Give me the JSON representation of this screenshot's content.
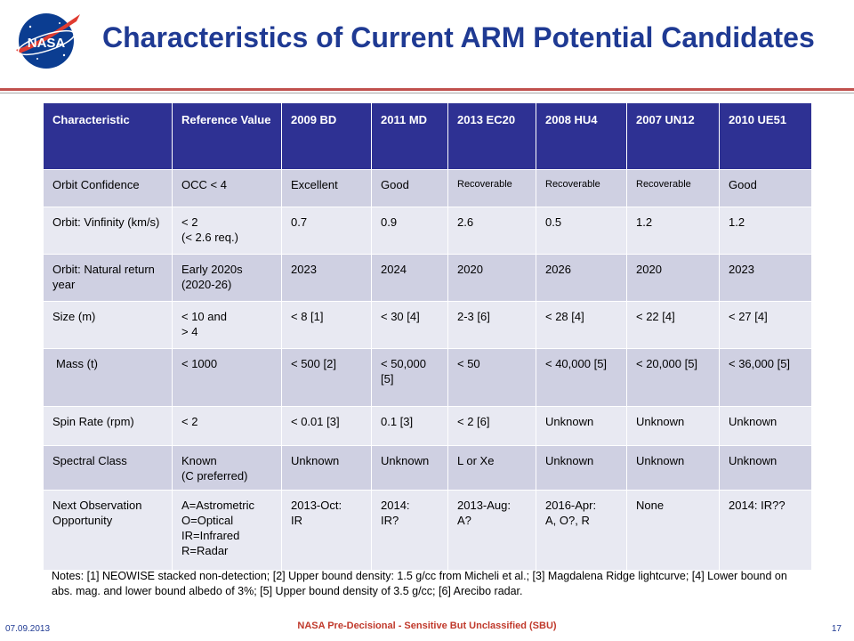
{
  "logo": {
    "text": "NASA"
  },
  "title": "Characteristics of Current ARM Potential Candidates",
  "table": {
    "headers": [
      "Characteristic",
      "Reference Value",
      "2009 BD",
      "2011 MD",
      "2013 EC20",
      "2008 HU4",
      "2007 UN12",
      "2010 UE51"
    ],
    "rows": [
      [
        "Orbit Confidence",
        " OCC < 4",
        "Excellent",
        "Good",
        "Recoverable",
        "Recoverable",
        "Recoverable",
        "Good"
      ],
      [
        "Orbit: Vinfinity (km/s)",
        "< 2\n(< 2.6 req.)",
        "0.7",
        "0.9",
        "2.6",
        "0.5",
        "1.2",
        "1.2"
      ],
      [
        "Orbit: Natural return year",
        "Early 2020s\n(2020-26)",
        "2023",
        "2024",
        "2020",
        "2026",
        "2020",
        "2023"
      ],
      [
        "Size (m)",
        "< 10 and\n  > 4",
        "< 8 [1]",
        "< 30 [4]",
        "2-3 [6]",
        "< 28 [4]",
        "< 22 [4]",
        "< 27 [4]"
      ],
      [
        "Mass (t)",
        "< 1000",
        "< 500 [2]",
        "< 50,000 [5]",
        "< 50",
        "< 40,000 [5]",
        "< 20,000 [5]",
        "< 36,000 [5]"
      ],
      [
        "Spin Rate (rpm)",
        "< 2",
        "< 0.01 [3]",
        "0.1 [3]",
        "< 2 [6]",
        "Unknown",
        "Unknown",
        "Unknown"
      ],
      [
        "Spectral Class",
        "Known\n(C preferred)",
        "Unknown",
        "Unknown",
        "L or Xe",
        "Unknown",
        "Unknown",
        "Unknown"
      ],
      [
        "Next Observation Opportunity",
        "A=Astrometric\nO=Optical\nIR=Infrared\nR=Radar",
        "2013-Oct:\nIR",
        "2014:\nIR?",
        "2013-Aug:\nA?",
        "2016-Apr:\nA, O?, R",
        "None",
        "2014: IR??"
      ]
    ]
  },
  "notes": "Notes: [1] NEOWISE stacked non-detection; [2] Upper bound density: 1.5 g/cc from Micheli et al.; [3] Magdalena Ridge lightcurve; [4] Lower bound on abs. mag. and lower bound albedo of 3%; [5] Upper bound density of 3.5 g/cc; [6] Arecibo radar.",
  "footer": {
    "date": "07.09.2013",
    "classification": "NASA Pre-Decisional - Sensitive But Unclassified (SBU)",
    "page": "17"
  },
  "colors": {
    "title": "#1f3a93",
    "header_bg": "#2e3193",
    "row_dark": "#cfd0e2",
    "row_light": "#e8e9f2",
    "rule": "#c0504d",
    "classification": "#c0392b"
  }
}
